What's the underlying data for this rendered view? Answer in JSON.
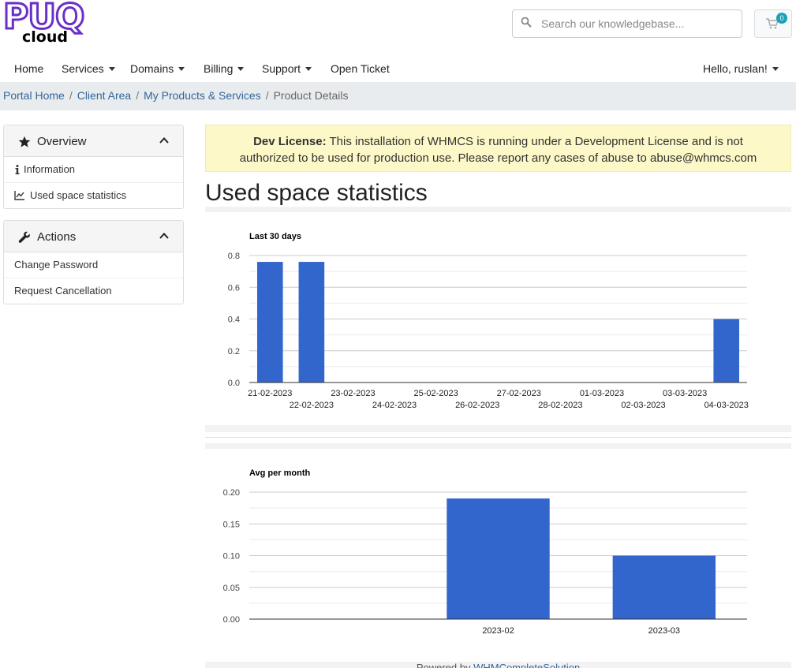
{
  "header": {
    "logo_text_top": "PUQ",
    "logo_text_bottom": "cloud",
    "search_placeholder": "Search our knowledgebase...",
    "cart_count": "0"
  },
  "nav": {
    "items": [
      {
        "label": "Home"
      },
      {
        "label": "Services"
      },
      {
        "label": "Domains"
      },
      {
        "label": "Billing"
      },
      {
        "label": "Support"
      },
      {
        "label": "Open Ticket"
      }
    ],
    "user_label": "Hello, ruslan!"
  },
  "breadcrumb": {
    "items": [
      "Portal Home",
      "Client Area",
      "My Products & Services"
    ],
    "current": "Product Details"
  },
  "sidebar": {
    "overview": {
      "title": "Overview",
      "items": [
        "Information",
        "Used space statistics"
      ]
    },
    "actions": {
      "title": "Actions",
      "items": [
        "Change Password",
        "Request Cancellation"
      ]
    }
  },
  "alert": {
    "strong": "Dev License:",
    "text": " This installation of WHMCS is running under a Development License and is not authorized to be used for production use. Please report any cases of abuse to abuse@whmcs.com"
  },
  "page": {
    "title": "Used space statistics"
  },
  "footer": {
    "prefix": "Powered by ",
    "link": "WHMCompleteSolution"
  },
  "colors": {
    "bar": "#3366cc",
    "accent": "#336699",
    "badge": "#17a2b8"
  },
  "chart_data": [
    {
      "type": "bar",
      "title": "Last 30 days",
      "categories": [
        "21-02-2023",
        "22-02-2023",
        "23-02-2023",
        "24-02-2023",
        "25-02-2023",
        "26-02-2023",
        "27-02-2023",
        "28-02-2023",
        "01-03-2023",
        "02-03-2023",
        "03-03-2023",
        "04-03-2023"
      ],
      "values": [
        0.76,
        0.76,
        0,
        0,
        0,
        0,
        0,
        0,
        0,
        0,
        0,
        0.4
      ],
      "ylim": [
        0,
        0.8
      ],
      "yticks": [
        "0.0",
        "0.2",
        "0.4",
        "0.6",
        "0.8"
      ],
      "grid": true
    },
    {
      "type": "bar",
      "title": "Avg per month",
      "categories": [
        "",
        "2023-02",
        "2023-03"
      ],
      "values": [
        0,
        0.19,
        0.1
      ],
      "ylim": [
        0,
        0.2
      ],
      "yticks": [
        "0.00",
        "0.05",
        "0.10",
        "0.15",
        "0.20"
      ],
      "grid": true
    }
  ]
}
